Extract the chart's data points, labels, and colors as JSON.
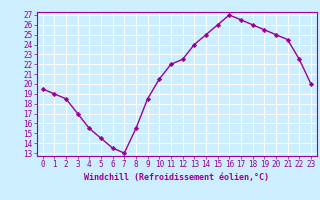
{
  "x": [
    0,
    1,
    2,
    3,
    4,
    5,
    6,
    7,
    8,
    9,
    10,
    11,
    12,
    13,
    14,
    15,
    16,
    17,
    18,
    19,
    20,
    21,
    22,
    23
  ],
  "y": [
    19.5,
    19.0,
    18.5,
    17.0,
    15.5,
    14.5,
    13.5,
    13.0,
    15.5,
    18.5,
    20.5,
    22.0,
    22.5,
    24.0,
    25.0,
    26.0,
    27.0,
    26.5,
    26.0,
    25.5,
    25.0,
    24.5,
    22.5,
    20.0
  ],
  "xlabel": "Windchill (Refroidissement éolien,°C)",
  "line_color": "#990099",
  "marker": "D",
  "marker_size": 2.2,
  "bg_color": "#cceeff",
  "grid_color": "#ffffff",
  "ylim": [
    13,
    27
  ],
  "xlim": [
    -0.5,
    23.5
  ],
  "yticks": [
    13,
    14,
    15,
    16,
    17,
    18,
    19,
    20,
    21,
    22,
    23,
    24,
    25,
    26,
    27
  ],
  "xticks": [
    0,
    1,
    2,
    3,
    4,
    5,
    6,
    7,
    8,
    9,
    10,
    11,
    12,
    13,
    14,
    15,
    16,
    17,
    18,
    19,
    20,
    21,
    22,
    23
  ],
  "tick_fontsize": 5.5,
  "xlabel_fontsize": 6.0,
  "linewidth": 1.0
}
